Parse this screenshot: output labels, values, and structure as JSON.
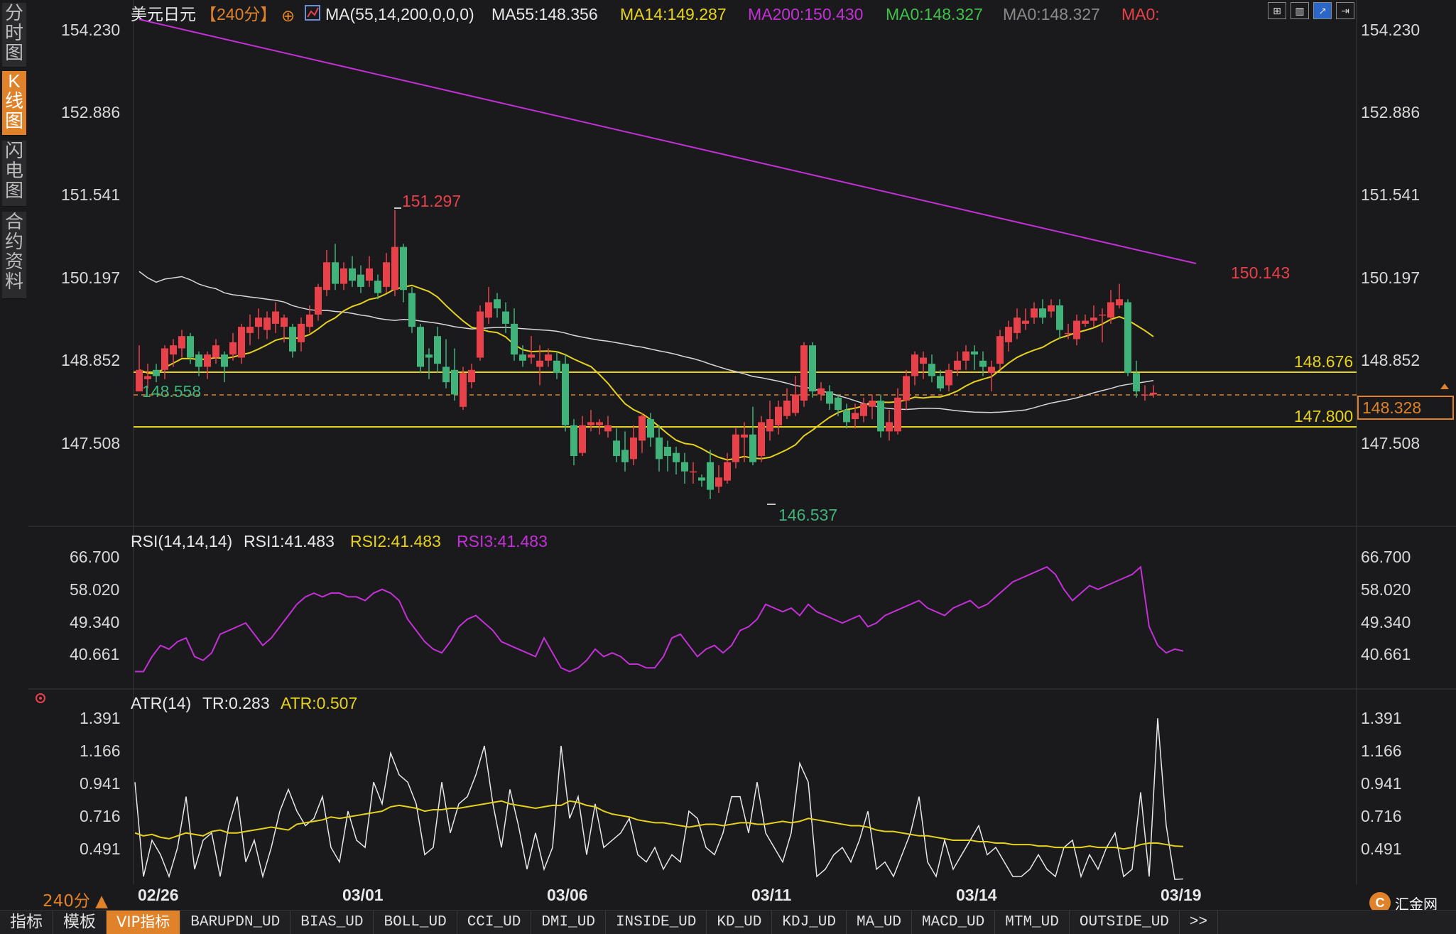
{
  "sidebar": {
    "tabs": [
      {
        "label": "分时图",
        "active": false
      },
      {
        "label": "K线图",
        "active": true
      },
      {
        "label": "闪电图",
        "active": false
      },
      {
        "label": "合约资料",
        "active": false
      }
    ]
  },
  "header": {
    "symbol": "美元日元",
    "period": "【240分】",
    "ma_label": "MA(55,14,200,0,0,0)",
    "ma55": "MA55:148.356",
    "ma14": "MA14:149.287",
    "ma200": "MA200:150.430",
    "ma0a": "MA0:148.327",
    "ma0b": "MA0:148.327",
    "ma0c": "MA0:"
  },
  "price_axis": {
    "labels": [
      "154.230",
      "152.886",
      "151.541",
      "150.197",
      "148.852",
      "147.508"
    ]
  },
  "annotations": {
    "high_label": "151.297",
    "low_label": "146.537",
    "recent_high": "150.143",
    "left_level": "148.558",
    "line_upper": "148.676",
    "line_lower": "147.800",
    "current_price": "148.328"
  },
  "rsi_panel": {
    "title": "RSI(14,14,14)",
    "rsi1": "RSI1:41.483",
    "rsi2": "RSI2:41.483",
    "rsi3": "RSI3:41.483",
    "labels": [
      "66.700",
      "58.020",
      "49.340",
      "40.661"
    ]
  },
  "atr_panel": {
    "title": "ATR(14)",
    "tr": "TR:0.283",
    "atr": "ATR:0.507",
    "labels": [
      "1.391",
      "1.166",
      "0.941",
      "0.716",
      "0.491"
    ]
  },
  "date_axis": {
    "labels": [
      "02/26",
      "03/01",
      "03/06",
      "03/11",
      "03/14",
      "03/19"
    ]
  },
  "bottom_tabs": [
    "指标",
    "模板",
    "VIP指标",
    "BARUPDN_UD",
    "BIAS_UD",
    "BOLL_UD",
    "CCI_UD",
    "DMI_UD",
    "INSIDE_UD",
    "KD_UD",
    "KDJ_UD",
    "MA_UD",
    "MACD_UD",
    "MTM_UD",
    "OUTSIDE_UD",
    ">>"
  ],
  "period_selector": "240分 ▲",
  "logo_text": "汇金网",
  "colors": {
    "up": "#e8414a",
    "down": "#3fb37a",
    "ma55": "#d8d8d8",
    "ma14": "#e6d21e",
    "ma200": "#c430d8",
    "level": "#e6d21e",
    "accent": "#e0822a"
  },
  "chart_data": {
    "type": "candlestick",
    "symbol": "美元日元",
    "y_range": [
      146.3,
      154.6
    ],
    "candles": [
      [
        148.35,
        148.7,
        149.1,
        148.55
      ],
      [
        148.55,
        148.6,
        148.8,
        148.4
      ],
      [
        148.7,
        148.6,
        148.8,
        148.5
      ],
      [
        148.7,
        149.05,
        149.1,
        148.55
      ],
      [
        148.95,
        149.1,
        149.2,
        148.75
      ],
      [
        149.05,
        149.25,
        149.35,
        148.9
      ],
      [
        149.25,
        148.9,
        149.3,
        148.8
      ],
      [
        148.95,
        148.75,
        149.0,
        148.6
      ],
      [
        148.75,
        148.95,
        149.0,
        148.55
      ],
      [
        148.9,
        149.1,
        149.2,
        148.8
      ],
      [
        148.95,
        148.75,
        149.0,
        148.5
      ],
      [
        148.95,
        149.15,
        149.3,
        148.85
      ],
      [
        148.9,
        149.4,
        149.45,
        148.8
      ],
      [
        149.3,
        149.4,
        149.6,
        149.1
      ],
      [
        149.4,
        149.55,
        149.7,
        149.2
      ],
      [
        149.35,
        149.55,
        149.65,
        149.2
      ],
      [
        149.45,
        149.65,
        149.8,
        149.3
      ],
      [
        149.4,
        149.55,
        149.6,
        149.15
      ],
      [
        149.4,
        149.0,
        149.45,
        148.9
      ],
      [
        149.15,
        149.45,
        149.55,
        149.0
      ],
      [
        149.4,
        149.6,
        149.75,
        149.3
      ],
      [
        149.6,
        150.05,
        150.1,
        149.5
      ],
      [
        150.0,
        150.45,
        150.65,
        149.9
      ],
      [
        150.45,
        150.1,
        150.75,
        150.0
      ],
      [
        150.1,
        150.35,
        150.45,
        150.0
      ],
      [
        150.35,
        150.15,
        150.55,
        150.05
      ],
      [
        150.25,
        150.05,
        150.4,
        149.95
      ],
      [
        150.15,
        150.35,
        150.55,
        150.05
      ],
      [
        150.15,
        149.95,
        150.25,
        149.85
      ],
      [
        150.05,
        150.45,
        150.6,
        149.95
      ],
      [
        150.0,
        150.7,
        151.3,
        149.9
      ],
      [
        150.7,
        150.0,
        150.75,
        149.8
      ],
      [
        149.95,
        149.4,
        150.05,
        149.3
      ],
      [
        149.4,
        148.75,
        149.45,
        148.65
      ],
      [
        148.95,
        148.9,
        149.05,
        148.55
      ],
      [
        149.25,
        148.8,
        149.4,
        148.65
      ],
      [
        148.75,
        148.5,
        149.2,
        148.4
      ],
      [
        148.7,
        148.3,
        149.05,
        148.2
      ],
      [
        148.1,
        148.65,
        148.75,
        148.05
      ],
      [
        148.5,
        148.7,
        148.8,
        148.4
      ],
      [
        148.9,
        149.65,
        149.75,
        148.85
      ],
      [
        149.55,
        149.8,
        150.05,
        149.45
      ],
      [
        149.85,
        149.7,
        149.95,
        149.55
      ],
      [
        149.65,
        149.45,
        149.8,
        149.3
      ],
      [
        149.45,
        148.95,
        149.7,
        148.85
      ],
      [
        148.95,
        148.85,
        149.1,
        148.75
      ],
      [
        148.9,
        148.95,
        149.25,
        148.8
      ],
      [
        148.75,
        148.85,
        149.1,
        148.45
      ],
      [
        148.85,
        148.95,
        149.05,
        148.75
      ],
      [
        148.85,
        148.65,
        149.0,
        148.55
      ],
      [
        148.8,
        147.8,
        148.95,
        147.7
      ],
      [
        147.8,
        147.3,
        147.9,
        147.15
      ],
      [
        147.35,
        147.8,
        147.95,
        147.3
      ],
      [
        147.8,
        147.85,
        148.05,
        147.7
      ],
      [
        147.8,
        147.85,
        147.9,
        147.65
      ],
      [
        147.7,
        147.8,
        147.95,
        147.6
      ],
      [
        147.55,
        147.3,
        147.75,
        147.2
      ],
      [
        147.4,
        147.2,
        147.7,
        147.05
      ],
      [
        147.25,
        147.6,
        147.8,
        147.15
      ],
      [
        147.55,
        147.95,
        148.0,
        147.35
      ],
      [
        147.9,
        147.6,
        148.0,
        147.45
      ],
      [
        147.6,
        147.25,
        147.8,
        147.05
      ],
      [
        147.45,
        147.3,
        147.55,
        147.05
      ],
      [
        147.35,
        147.2,
        147.45,
        147.0
      ],
      [
        147.2,
        147.05,
        147.35,
        146.85
      ],
      [
        147.05,
        147.05,
        147.2,
        146.85
      ],
      [
        146.95,
        146.9,
        147.0,
        146.8
      ],
      [
        147.2,
        146.75,
        147.4,
        146.6
      ],
      [
        146.8,
        146.95,
        147.15,
        146.7
      ],
      [
        146.9,
        147.2,
        147.35,
        146.85
      ],
      [
        147.2,
        147.65,
        147.75,
        147.1
      ],
      [
        147.6,
        147.65,
        147.85,
        147.2
      ],
      [
        147.65,
        147.2,
        148.1,
        147.15
      ],
      [
        147.3,
        147.85,
        147.95,
        147.2
      ],
      [
        147.7,
        147.9,
        148.2,
        147.55
      ],
      [
        147.8,
        148.1,
        148.2,
        147.65
      ],
      [
        147.95,
        148.2,
        148.4,
        147.9
      ],
      [
        148.0,
        148.3,
        148.6,
        147.95
      ],
      [
        148.2,
        149.1,
        149.15,
        148.1
      ],
      [
        149.1,
        148.35,
        149.15,
        148.25
      ],
      [
        148.3,
        148.4,
        148.5,
        148.2
      ],
      [
        148.35,
        148.15,
        148.45,
        148.05
      ],
      [
        148.25,
        148.05,
        148.3,
        147.95
      ],
      [
        148.05,
        147.85,
        148.15,
        147.75
      ],
      [
        147.9,
        148.0,
        148.15,
        147.75
      ],
      [
        147.95,
        148.15,
        148.25,
        147.85
      ],
      [
        148.1,
        148.2,
        148.3,
        147.9
      ],
      [
        148.2,
        147.7,
        148.3,
        147.6
      ],
      [
        147.7,
        147.85,
        148.05,
        147.55
      ],
      [
        147.7,
        148.25,
        148.4,
        147.65
      ],
      [
        148.2,
        148.6,
        148.7,
        148.05
      ],
      [
        148.6,
        148.95,
        149.0,
        148.45
      ],
      [
        148.8,
        148.9,
        149.0,
        148.55
      ],
      [
        148.8,
        148.6,
        148.95,
        148.5
      ],
      [
        148.6,
        148.4,
        148.7,
        148.35
      ],
      [
        148.45,
        148.7,
        148.8,
        148.35
      ],
      [
        148.7,
        148.85,
        149.0,
        148.6
      ],
      [
        148.85,
        149.0,
        149.1,
        148.7
      ],
      [
        149.0,
        148.95,
        149.1,
        148.7
      ],
      [
        148.85,
        148.75,
        149.0,
        148.6
      ],
      [
        148.65,
        148.75,
        148.85,
        148.35
      ],
      [
        148.8,
        149.25,
        149.35,
        148.7
      ],
      [
        149.15,
        149.4,
        149.5,
        149.0
      ],
      [
        149.3,
        149.55,
        149.7,
        149.2
      ],
      [
        149.45,
        149.5,
        149.7,
        149.35
      ],
      [
        149.55,
        149.7,
        149.8,
        149.45
      ],
      [
        149.7,
        149.55,
        149.85,
        149.45
      ],
      [
        149.65,
        149.75,
        149.85,
        149.55
      ],
      [
        149.75,
        149.35,
        149.85,
        149.2
      ],
      [
        149.3,
        149.3,
        149.45,
        149.2
      ],
      [
        149.2,
        149.5,
        149.6,
        149.1
      ],
      [
        149.45,
        149.5,
        149.6,
        149.4
      ],
      [
        149.5,
        149.55,
        149.75,
        149.4
      ],
      [
        149.6,
        149.6,
        149.7,
        149.15
      ],
      [
        149.55,
        149.8,
        150.0,
        149.45
      ],
      [
        149.75,
        149.85,
        150.1,
        149.7
      ],
      [
        149.8,
        148.65,
        149.85,
        148.6
      ],
      [
        148.65,
        148.35,
        148.85,
        148.25
      ],
      [
        148.3,
        148.3,
        148.45,
        148.2
      ],
      [
        148.3,
        148.33,
        148.45,
        148.25
      ]
    ],
    "ma200": [
      [
        0,
        154.4
      ],
      [
        124,
        150.43
      ]
    ],
    "ma55": [
      148.9,
      150.5,
      148.65,
      148.36
    ],
    "levels": [
      148.676,
      147.8
    ],
    "current": 148.328,
    "rsi": [
      36,
      36,
      40,
      43,
      42,
      44,
      45,
      40,
      39,
      41,
      46,
      47,
      48,
      49,
      46,
      43,
      45,
      48,
      51,
      54,
      56,
      57,
      56,
      57,
      57,
      56,
      56,
      55,
      57,
      58,
      57,
      55,
      50,
      47,
      44,
      42,
      41,
      44,
      48,
      50,
      51,
      49,
      47,
      44,
      43,
      42,
      41,
      40,
      45,
      41,
      37,
      36,
      37,
      39,
      42,
      40,
      41,
      40,
      38,
      38,
      37,
      37,
      40,
      45,
      46,
      43,
      40,
      42,
      43,
      41,
      43,
      47,
      48,
      50,
      54,
      53,
      52,
      53,
      51,
      54,
      52,
      51,
      50,
      49,
      50,
      51,
      48,
      49,
      51,
      52,
      53,
      54,
      55,
      53,
      52,
      51,
      53,
      54,
      55,
      53,
      54,
      56,
      58,
      60,
      61,
      62,
      63,
      64,
      62,
      58,
      55,
      57,
      59,
      58,
      59,
      60,
      61,
      62,
      64,
      48,
      43,
      41,
      42,
      41.5
    ],
    "atr": [
      0.6,
      0.58,
      0.59,
      0.57,
      0.56,
      0.58,
      0.6,
      0.59,
      0.58,
      0.61,
      0.62,
      0.6,
      0.6,
      0.61,
      0.62,
      0.63,
      0.64,
      0.63,
      0.62,
      0.66,
      0.67,
      0.68,
      0.69,
      0.71,
      0.7,
      0.71,
      0.72,
      0.73,
      0.74,
      0.75,
      0.78,
      0.79,
      0.78,
      0.77,
      0.75,
      0.76,
      0.76,
      0.77,
      0.77,
      0.78,
      0.79,
      0.8,
      0.81,
      0.82,
      0.8,
      0.79,
      0.78,
      0.77,
      0.78,
      0.79,
      0.79,
      0.82,
      0.81,
      0.79,
      0.78,
      0.75,
      0.73,
      0.72,
      0.71,
      0.69,
      0.68,
      0.67,
      0.67,
      0.66,
      0.65,
      0.64,
      0.65,
      0.66,
      0.66,
      0.65,
      0.66,
      0.67,
      0.67,
      0.66,
      0.66,
      0.67,
      0.68,
      0.67,
      0.68,
      0.7,
      0.69,
      0.68,
      0.67,
      0.66,
      0.65,
      0.65,
      0.64,
      0.62,
      0.61,
      0.61,
      0.6,
      0.59,
      0.58,
      0.58,
      0.57,
      0.56,
      0.55,
      0.55,
      0.55,
      0.54,
      0.54,
      0.53,
      0.53,
      0.52,
      0.52,
      0.52,
      0.51,
      0.51,
      0.5,
      0.5,
      0.5,
      0.5,
      0.51,
      0.5,
      0.5,
      0.5,
      0.49,
      0.5,
      0.52,
      0.53,
      0.53,
      0.52,
      0.51,
      0.507
    ],
    "tr": [
      0.95,
      0.3,
      0.55,
      0.45,
      0.3,
      0.5,
      0.85,
      0.35,
      0.55,
      0.6,
      0.3,
      0.65,
      0.85,
      0.4,
      0.55,
      0.3,
      0.5,
      0.75,
      0.9,
      0.75,
      0.65,
      0.7,
      0.85,
      0.5,
      0.4,
      0.75,
      0.55,
      0.5,
      0.95,
      0.8,
      1.15,
      1.0,
      0.95,
      0.8,
      0.45,
      0.5,
      0.95,
      0.6,
      0.8,
      0.85,
      1.0,
      1.2,
      0.8,
      0.5,
      0.9,
      0.65,
      0.35,
      0.6,
      0.35,
      0.5,
      1.2,
      0.7,
      0.85,
      0.45,
      0.8,
      0.5,
      0.55,
      0.6,
      0.7,
      0.45,
      0.4,
      0.5,
      0.35,
      0.45,
      0.4,
      0.75,
      0.7,
      0.5,
      0.45,
      0.6,
      0.85,
      0.85,
      0.6,
      0.95,
      0.6,
      0.5,
      0.4,
      0.6,
      1.08,
      0.95,
      0.3,
      0.35,
      0.45,
      0.5,
      0.4,
      0.55,
      0.75,
      0.35,
      0.4,
      0.3,
      0.45,
      0.6,
      0.85,
      0.4,
      0.3,
      0.55,
      0.35,
      0.45,
      0.55,
      0.65,
      0.45,
      0.5,
      0.4,
      0.3,
      0.3,
      0.35,
      0.45,
      0.35,
      0.3,
      0.5,
      0.55,
      0.3,
      0.45,
      0.35,
      0.5,
      0.6,
      0.3,
      0.35,
      0.88,
      0.3,
      1.39,
      0.65,
      0.28,
      0.283
    ]
  }
}
